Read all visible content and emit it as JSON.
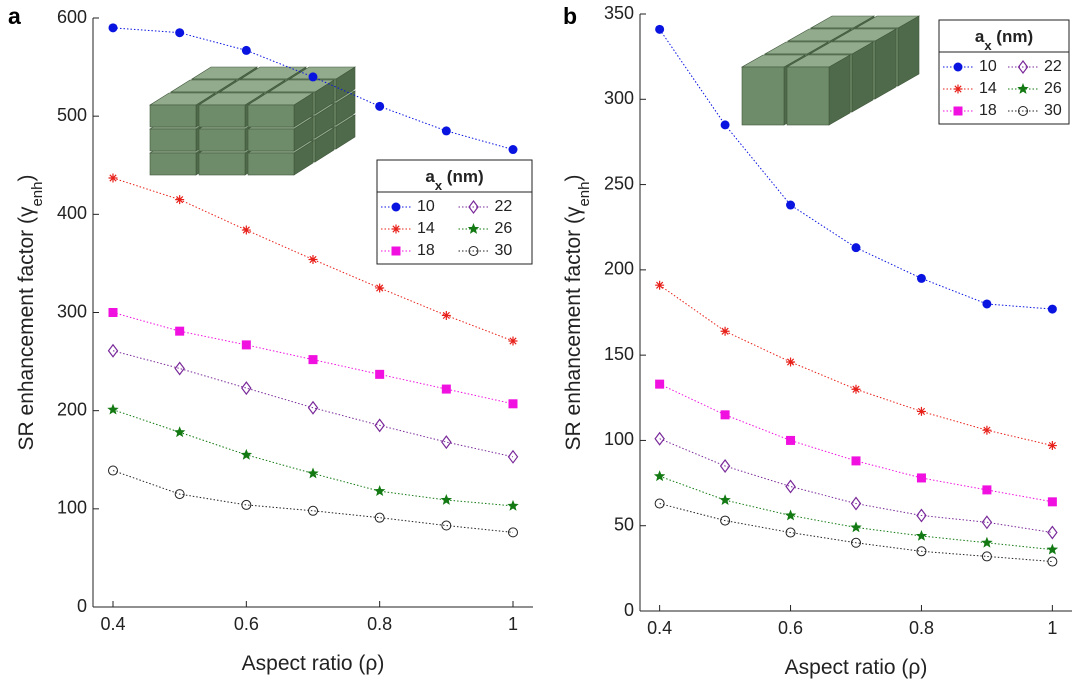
{
  "chart_data": [
    {
      "type": "line",
      "panel_label": "a",
      "xlabel": "Aspect ratio (ρ)",
      "ylabel_parts": [
        "SR enhancement factor (",
        "γ",
        "enh",
        ")"
      ],
      "legend_title_parts": [
        "a",
        "x",
        " (nm)"
      ],
      "xlim": [
        0.37,
        1.03
      ],
      "xticks": [
        0.4,
        0.6,
        0.8,
        1
      ],
      "ylim": [
        0,
        600
      ],
      "yticks": [
        0,
        100,
        200,
        300,
        400,
        500,
        600
      ],
      "x": [
        0.4,
        0.5,
        0.6,
        0.7,
        0.8,
        0.9,
        1
      ],
      "series": [
        {
          "name": "10",
          "color": "#0a14e0",
          "marker": "circle-filled",
          "values": [
            590,
            585,
            567,
            540,
            510,
            485,
            466
          ]
        },
        {
          "name": "14",
          "color": "#e8201a",
          "marker": "asterisk",
          "values": [
            437,
            415,
            384,
            354,
            325,
            297,
            271
          ]
        },
        {
          "name": "18",
          "color": "#f010e0",
          "marker": "square-filled",
          "values": [
            300,
            281,
            267,
            252,
            237,
            222,
            207
          ]
        },
        {
          "name": "22",
          "color": "#7a2a9a",
          "marker": "diamond-open",
          "values": [
            261,
            243,
            223,
            203,
            185,
            168,
            153
          ]
        },
        {
          "name": "26",
          "color": "#137a13",
          "marker": "star-filled",
          "values": [
            201,
            178,
            155,
            136,
            118,
            109,
            103
          ]
        },
        {
          "name": "30",
          "color": "#222222",
          "marker": "circle-open",
          "values": [
            139,
            115,
            104,
            98,
            91,
            83,
            76
          ]
        }
      ]
    },
    {
      "type": "line",
      "panel_label": "b",
      "xlabel": "Aspect ratio (ρ)",
      "ylabel_parts": [
        "SR enhancement factor (",
        "γ",
        "enh",
        ")"
      ],
      "legend_title_parts": [
        "a",
        "x",
        " (nm)"
      ],
      "xlim": [
        0.37,
        1.03
      ],
      "xticks": [
        0.4,
        0.6,
        0.8,
        1
      ],
      "ylim": [
        0,
        350
      ],
      "yticks": [
        0,
        50,
        100,
        150,
        200,
        250,
        300,
        350
      ],
      "x": [
        0.4,
        0.5,
        0.6,
        0.7,
        0.8,
        0.9,
        1
      ],
      "series": [
        {
          "name": "10",
          "color": "#0a14e0",
          "marker": "circle-filled",
          "values": [
            341,
            285,
            238,
            213,
            195,
            180,
            177
          ]
        },
        {
          "name": "14",
          "color": "#e8201a",
          "marker": "asterisk",
          "values": [
            191,
            164,
            146,
            130,
            117,
            106,
            97
          ]
        },
        {
          "name": "18",
          "color": "#f010e0",
          "marker": "square-filled",
          "values": [
            133,
            115,
            100,
            88,
            78,
            71,
            64
          ]
        },
        {
          "name": "22",
          "color": "#7a2a9a",
          "marker": "diamond-open",
          "values": [
            101,
            85,
            73,
            63,
            56,
            52,
            46
          ]
        },
        {
          "name": "26",
          "color": "#137a13",
          "marker": "star-filled",
          "values": [
            79,
            65,
            56,
            49,
            44,
            40,
            36
          ]
        },
        {
          "name": "30",
          "color": "#222222",
          "marker": "circle-open",
          "values": [
            63,
            53,
            46,
            40,
            35,
            32,
            29
          ]
        }
      ]
    }
  ]
}
